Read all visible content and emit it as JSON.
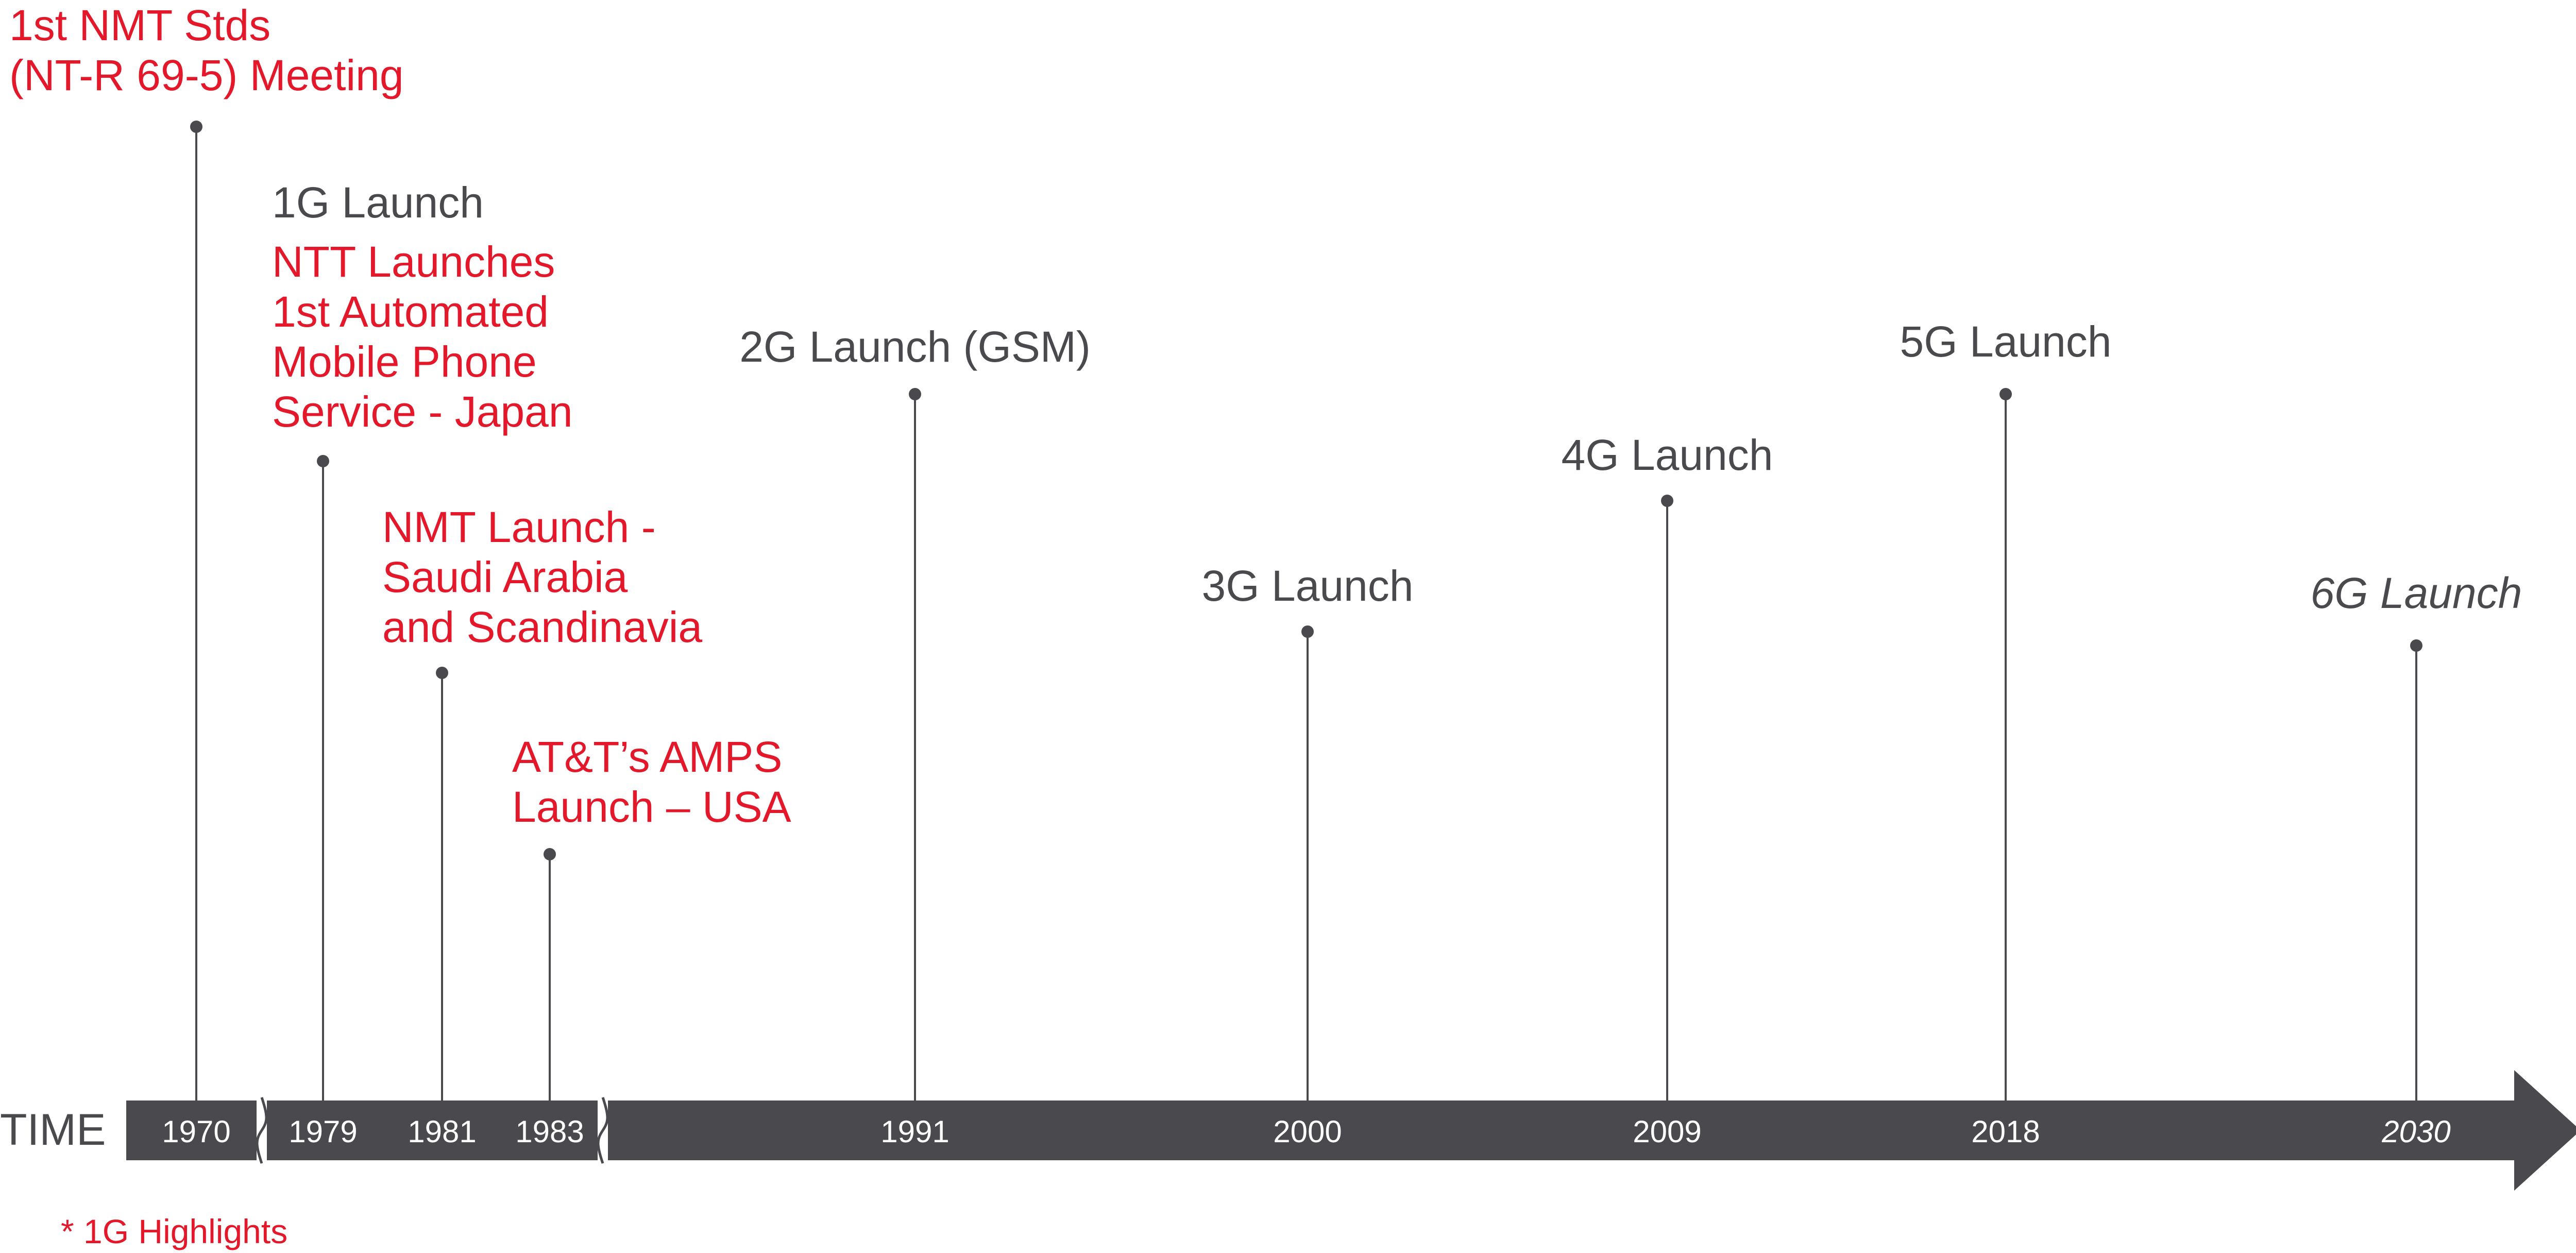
{
  "axis_label": "TIME",
  "footnote": "* 1G Highlights",
  "colors": {
    "highlight": "#e3192b",
    "normal": "#4a4a4e",
    "bar": "#4a4a4e",
    "bar_text": "#ffffff"
  },
  "axis_breaks": [
    "between 1970 and 1979",
    "between 1983 and 1991"
  ],
  "events": [
    {
      "year": "1970",
      "highlight": true,
      "italic": false,
      "lines": [
        "1st NMT Stds",
        "(NT-R 69-5) Meeting"
      ]
    },
    {
      "year": "1979",
      "highlight": false,
      "italic": false,
      "lines": [
        "1G Launch"
      ]
    },
    {
      "year": "1979",
      "highlight": true,
      "italic": false,
      "lines": [
        "NTT Launches",
        "1st Automated",
        "Mobile Phone",
        "Service - Japan"
      ]
    },
    {
      "year": "1981",
      "highlight": true,
      "italic": false,
      "lines": [
        "NMT Launch -",
        "Saudi Arabia",
        "and Scandinavia"
      ]
    },
    {
      "year": "1983",
      "highlight": true,
      "italic": false,
      "lines": [
        "AT&T’s AMPS",
        "Launch – USA"
      ]
    },
    {
      "year": "1991",
      "highlight": false,
      "italic": false,
      "lines": [
        "2G Launch (GSM)"
      ]
    },
    {
      "year": "2000",
      "highlight": false,
      "italic": false,
      "lines": [
        "3G Launch"
      ]
    },
    {
      "year": "2009",
      "highlight": false,
      "italic": false,
      "lines": [
        "4G Launch"
      ]
    },
    {
      "year": "2018",
      "highlight": false,
      "italic": false,
      "lines": [
        "5G Launch"
      ]
    },
    {
      "year": "2030",
      "highlight": false,
      "italic": true,
      "lines": [
        "6G Launch"
      ]
    }
  ],
  "ticks": [
    {
      "year": "1970",
      "italic": false
    },
    {
      "year": "1979",
      "italic": false
    },
    {
      "year": "1981",
      "italic": false
    },
    {
      "year": "1983",
      "italic": false
    },
    {
      "year": "1991",
      "italic": false
    },
    {
      "year": "2000",
      "italic": false
    },
    {
      "year": "2009",
      "italic": false
    },
    {
      "year": "2018",
      "italic": false
    },
    {
      "year": "2030",
      "italic": true
    }
  ]
}
